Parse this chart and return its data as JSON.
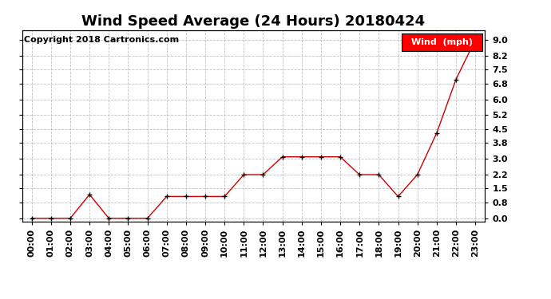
{
  "title": "Wind Speed Average (24 Hours) 20180424",
  "copyright": "Copyright 2018 Cartronics.com",
  "legend_label": "Wind  (mph)",
  "x_labels": [
    "00:00",
    "01:00",
    "02:00",
    "03:00",
    "04:00",
    "05:00",
    "06:00",
    "07:00",
    "08:00",
    "09:00",
    "10:00",
    "11:00",
    "12:00",
    "13:00",
    "14:00",
    "15:00",
    "16:00",
    "17:00",
    "18:00",
    "19:00",
    "20:00",
    "21:00",
    "22:00",
    "23:00"
  ],
  "y_values": [
    0.0,
    0.0,
    0.0,
    1.2,
    0.0,
    0.0,
    0.0,
    1.1,
    1.1,
    1.1,
    1.1,
    2.2,
    2.2,
    3.1,
    3.1,
    3.1,
    3.1,
    2.2,
    2.2,
    1.1,
    2.2,
    4.3,
    7.0,
    9.0
  ],
  "line_color": "#cc0000",
  "marker_color": "#000000",
  "background_color": "#ffffff",
  "grid_color": "#c0c0c0",
  "ylim_min": -0.15,
  "ylim_max": 9.5,
  "yticks": [
    0.0,
    0.8,
    1.5,
    2.2,
    3.0,
    3.8,
    4.5,
    5.2,
    6.0,
    6.8,
    7.5,
    8.2,
    9.0
  ],
  "ytick_labels": [
    "0.0",
    "0.8",
    "1.5",
    "2.2",
    "3.0",
    "3.8",
    "4.5",
    "5.2",
    "6.0",
    "6.8",
    "7.5",
    "8.2",
    "9.0"
  ],
  "title_fontsize": 13,
  "copyright_fontsize": 8,
  "legend_fontsize": 8,
  "tick_fontsize": 8,
  "fig_width": 6.9,
  "fig_height": 3.75,
  "dpi": 100
}
